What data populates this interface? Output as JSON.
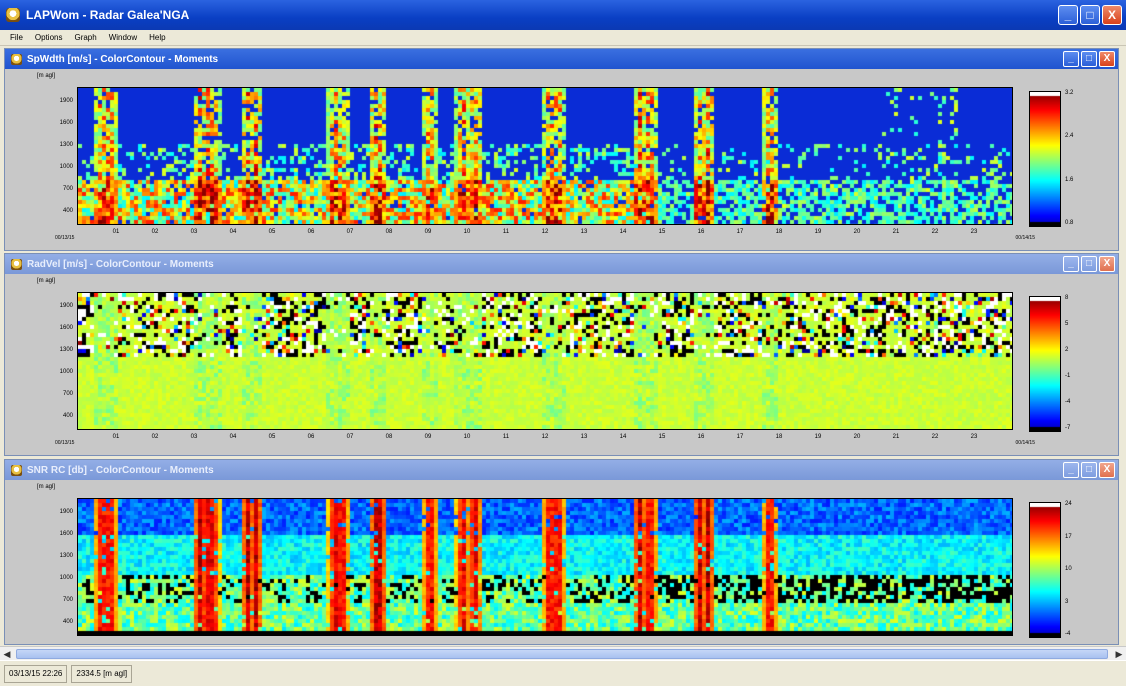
{
  "app": {
    "title": "LAPWom - Radar Galea'NGA",
    "window_buttons": [
      "_",
      "□",
      "X"
    ]
  },
  "menu": {
    "items": [
      "File",
      "Options",
      "Graph",
      "Window",
      "Help"
    ]
  },
  "panels": [
    {
      "title": "SpWdth [m/s] - ColorContour - Moments",
      "unit_label": "[m agl]",
      "y_ticks": [
        "1900",
        "1600",
        "1300",
        "1000",
        "700",
        "400"
      ],
      "x_ticks": [
        "01",
        "02",
        "03",
        "04",
        "05",
        "06",
        "07",
        "08",
        "09",
        "10",
        "11",
        "12",
        "13",
        "14",
        "15",
        "16",
        "17",
        "18",
        "19",
        "20",
        "21",
        "22",
        "23"
      ],
      "x_edge_left": "00/13/15",
      "x_edge_right": "00/14/15",
      "colorbar_ticks": [
        "3.2",
        "2.4",
        "1.6",
        "0.8"
      ],
      "field": "width",
      "active": true
    },
    {
      "title": "RadVel [m/s] - ColorContour - Moments",
      "unit_label": "[m agl]",
      "y_ticks": [
        "1900",
        "1600",
        "1300",
        "1000",
        "700",
        "400"
      ],
      "x_ticks": [
        "01",
        "02",
        "03",
        "04",
        "05",
        "06",
        "07",
        "08",
        "09",
        "10",
        "11",
        "12",
        "13",
        "14",
        "15",
        "16",
        "17",
        "18",
        "19",
        "20",
        "21",
        "22",
        "23"
      ],
      "x_edge_left": "00/13/15",
      "x_edge_right": "00/14/15",
      "colorbar_ticks": [
        "8",
        "5",
        "2",
        "-1",
        "-4",
        "-7"
      ],
      "field": "velocity",
      "active": false
    },
    {
      "title": "SNR RC [db] - ColorContour - Moments",
      "unit_label": "[m agl]",
      "y_ticks": [
        "1900",
        "1600",
        "1300",
        "1000",
        "700",
        "400"
      ],
      "x_ticks": [],
      "x_edge_left": "",
      "x_edge_right": "",
      "colorbar_ticks": [
        "24",
        "17",
        "10",
        "3",
        "-4"
      ],
      "field": "snr",
      "active": false
    }
  ],
  "status": {
    "datetime": "03/13/15 22:26",
    "height": "2334.5 [m agl]"
  },
  "colors": {
    "titlebar": "#0a3fc4",
    "panel_bg": "#c8c8c8",
    "plot_deep_blue": "#0a2cd6"
  }
}
